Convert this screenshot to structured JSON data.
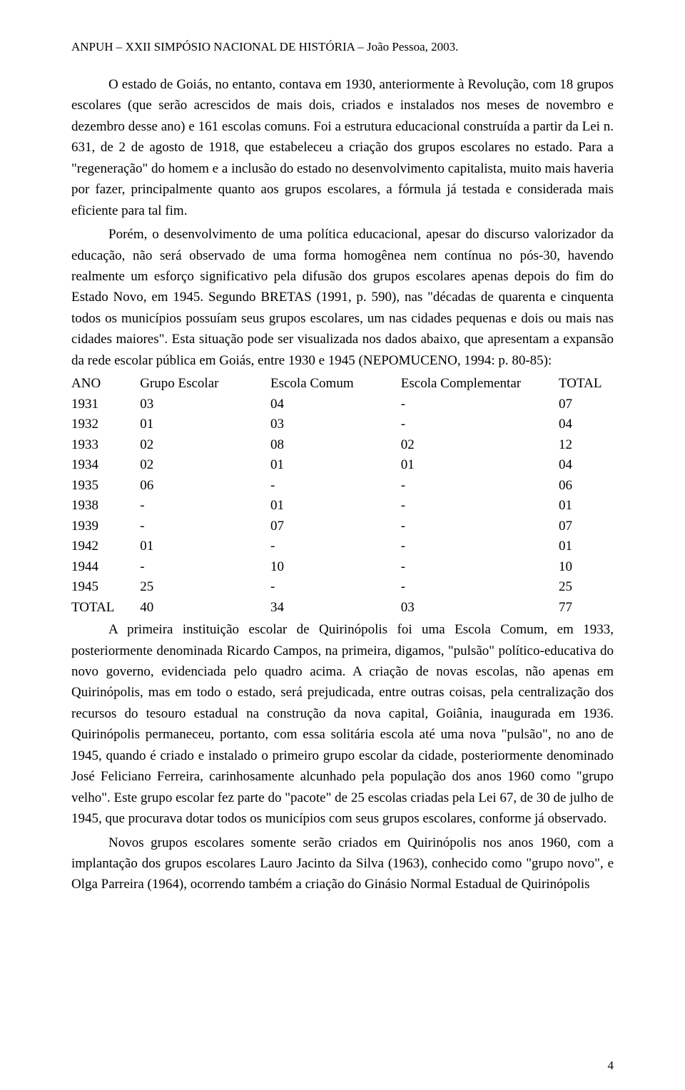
{
  "header": "ANPUH – XXII SIMPÓSIO NACIONAL DE HISTÓRIA – João Pessoa, 2003.",
  "para1": "O estado de Goiás, no entanto, contava em 1930, anteriormente à Revolução, com 18 grupos escolares (que serão acrescidos de mais dois, criados e instalados nos meses de novembro e dezembro desse ano) e 161 escolas comuns. Foi a estrutura educacional construída a partir da Lei n. 631, de 2 de agosto de 1918, que estabeleceu a criação dos grupos escolares no estado. Para a \"regeneração\" do homem e a inclusão do estado no desenvolvimento capitalista, muito mais haveria por fazer, principalmente quanto aos grupos escolares, a fórmula já testada e considerada mais eficiente para tal fim.",
  "para2": "Porém, o desenvolvimento de uma política educacional, apesar do discurso valorizador da educação, não será observado de uma forma homogênea nem contínua no pós-30, havendo realmente um esforço significativo pela difusão dos grupos escolares apenas depois do fim do Estado Novo, em 1945. Segundo BRETAS (1991, p. 590), nas \"décadas de quarenta e cinquenta todos os municípios possuíam seus grupos escolares, um nas cidades pequenas e dois ou mais nas cidades maiores\". Esta situação pode ser visualizada nos dados abaixo, que apresentam a expansão da rede escolar pública em Goiás, entre 1930 e 1945 (NEPOMUCENO, 1994: p. 80-85):",
  "table": {
    "columns": [
      "ANO",
      "Grupo Escolar",
      "Escola Comum",
      "Escola Complementar",
      "TOTAL"
    ],
    "rows": [
      [
        "1931",
        "03",
        "04",
        "-",
        "07"
      ],
      [
        "1932",
        "01",
        "03",
        "-",
        "04"
      ],
      [
        "1933",
        "02",
        "08",
        "02",
        "12"
      ],
      [
        "1934",
        "02",
        "01",
        "01",
        "04"
      ],
      [
        "1935",
        "06",
        "-",
        "-",
        "06"
      ],
      [
        "1938",
        "-",
        "01",
        "-",
        "01"
      ],
      [
        "1939",
        "-",
        "07",
        "-",
        "07"
      ],
      [
        "1942",
        "01",
        "-",
        "-",
        "01"
      ],
      [
        "1944",
        "-",
        "10",
        "-",
        "10"
      ],
      [
        "1945",
        "25",
        "-",
        "-",
        "25"
      ],
      [
        "TOTAL",
        "40",
        "34",
        "03",
        "77"
      ]
    ]
  },
  "para3": "A primeira instituição escolar de Quirinópolis foi uma Escola Comum, em 1933, posteriormente denominada Ricardo Campos, na primeira, digamos, \"pulsão\" político-educativa do novo governo, evidenciada pelo quadro acima. A criação de novas escolas, não apenas em Quirinópolis, mas em todo o estado, será prejudicada, entre outras coisas, pela centralização dos recursos do tesouro estadual na construção da nova capital, Goiânia, inaugurada em 1936. Quirinópolis permaneceu, portanto, com essa solitária escola até uma nova \"pulsão\", no ano de 1945, quando é criado e instalado o primeiro grupo escolar da cidade, posteriormente denominado José Feliciano Ferreira, carinhosamente alcunhado pela população dos anos 1960 como \"grupo velho\". Este grupo escolar fez parte do \"pacote\" de 25 escolas criadas pela Lei 67, de 30 de julho de 1945, que procurava dotar todos os municípios com seus grupos escolares, conforme já observado.",
  "para4": "Novos grupos escolares somente serão criados em Quirinópolis nos anos 1960, com a implantação dos grupos escolares Lauro Jacinto da Silva (1963), conhecido como \"grupo novo\", e Olga Parreira (1964), ocorrendo também a criação do Ginásio Normal Estadual de Quirinópolis",
  "pageNumber": "4"
}
